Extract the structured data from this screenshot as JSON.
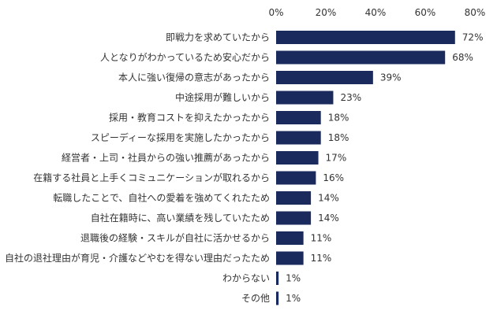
{
  "chart_data": {
    "type": "bar",
    "orientation": "horizontal",
    "categories": [
      "即戦力を求めていたから",
      "人となりがわかっているため安心だから",
      "本人に強い復帰の意志があったから",
      "中途採用が難しいから",
      "採用・教育コストを抑えたかったから",
      "スピーディーな採用を実施したかったから",
      "経営者・上司・社員からの強い推薦があったから",
      "在籍する社員と上手くコミュニケーションが取れるから",
      "転職したことで、自社への愛着を強めてくれたため",
      "自社在籍時に、高い業績を残していたため",
      "退職後の経験・スキルが自社に活かせるから",
      "自社の退社理由が育児・介護などやむを得ない理由だったため",
      "わからない",
      "その他"
    ],
    "values": [
      72,
      68,
      39,
      23,
      18,
      18,
      17,
      16,
      14,
      14,
      11,
      11,
      1,
      1
    ],
    "value_labels": [
      "72%",
      "68%",
      "39%",
      "23%",
      "18%",
      "18%",
      "17%",
      "16%",
      "14%",
      "14%",
      "11%",
      "11%",
      "1%",
      "1%"
    ],
    "xlim": [
      0,
      80
    ],
    "xticks": [
      0,
      20,
      40,
      60,
      80
    ],
    "xtick_labels": [
      "0%",
      "20%",
      "40%",
      "60%",
      "80%"
    ],
    "axis_position": "top",
    "grid": false,
    "bar_color": "#1b2a5c"
  }
}
